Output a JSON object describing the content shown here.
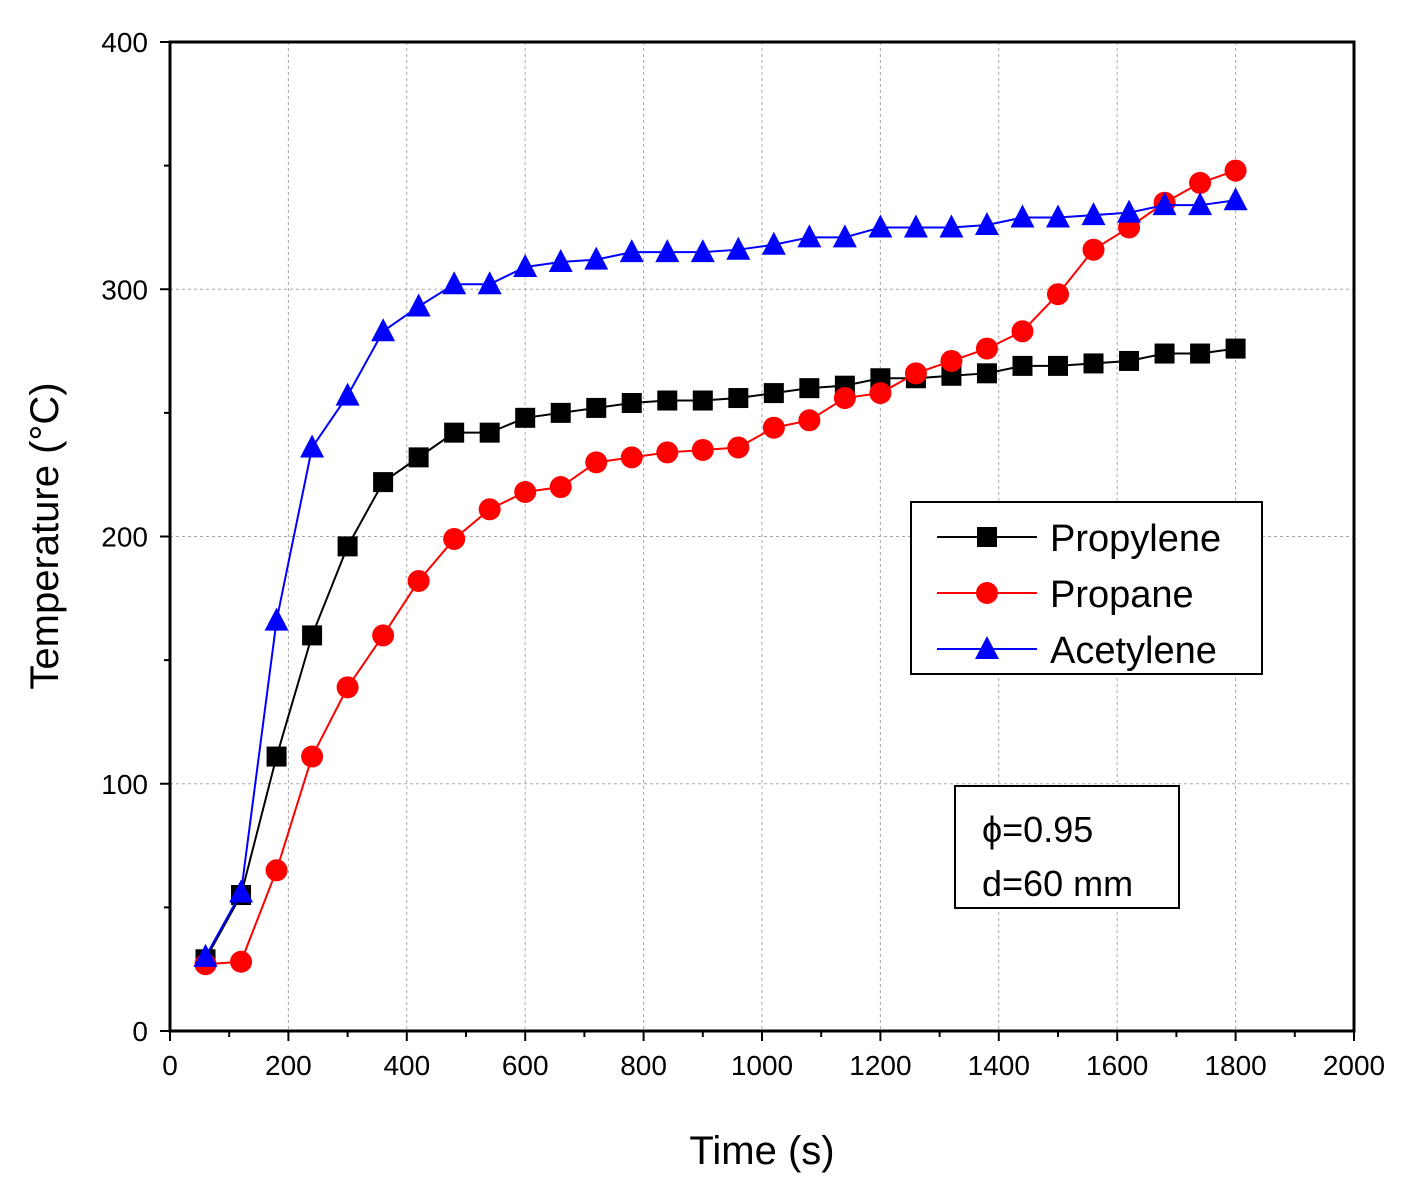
{
  "chart_data": {
    "type": "line",
    "xlabel": "Time (s)",
    "ylabel": "Temperature (°C)",
    "xlim": [
      0,
      2000
    ],
    "ylim": [
      0,
      400
    ],
    "xticks": [
      0,
      200,
      400,
      600,
      800,
      1000,
      1200,
      1400,
      1600,
      1800,
      2000
    ],
    "yticks": [
      0,
      100,
      200,
      300,
      400
    ],
    "xtick_labels": [
      "0",
      "200",
      "400",
      "600",
      "800",
      "1000",
      "1200",
      "1400",
      "1600",
      "1800",
      "2000"
    ],
    "ytick_labels": [
      "0",
      "100",
      "200",
      "300",
      "400"
    ],
    "grid": true,
    "legend_position": "center-right",
    "x": [
      60,
      120,
      180,
      240,
      300,
      360,
      420,
      480,
      540,
      600,
      660,
      720,
      780,
      840,
      900,
      960,
      1020,
      1080,
      1140,
      1200,
      1260,
      1320,
      1380,
      1440,
      1500,
      1560,
      1620,
      1680,
      1740,
      1800
    ],
    "series": [
      {
        "name": "Propylene",
        "color": "#000000",
        "marker": "square",
        "values": [
          29,
          55,
          111,
          160,
          196,
          222,
          232,
          242,
          242,
          248,
          250,
          252,
          254,
          255,
          255,
          256,
          258,
          260,
          261,
          264,
          264,
          265,
          266,
          269,
          269,
          270,
          271,
          274,
          274,
          276
        ]
      },
      {
        "name": "Propane",
        "color": "#ff0000",
        "marker": "circle",
        "values": [
          27,
          28,
          65,
          111,
          139,
          160,
          182,
          199,
          211,
          218,
          220,
          230,
          232,
          234,
          235,
          236,
          244,
          247,
          256,
          258,
          266,
          271,
          276,
          283,
          298,
          316,
          325,
          335,
          343,
          348
        ]
      },
      {
        "name": "Acetylene",
        "color": "#0000ff",
        "marker": "triangle",
        "values": [
          30,
          56,
          166,
          236,
          257,
          283,
          293,
          302,
          302,
          309,
          311,
          312,
          315,
          315,
          315,
          316,
          318,
          321,
          321,
          325,
          325,
          325,
          326,
          329,
          329,
          330,
          331,
          334,
          334,
          336
        ]
      }
    ],
    "annotations": [
      "ϕ=0.95",
      "d=60 mm"
    ]
  }
}
